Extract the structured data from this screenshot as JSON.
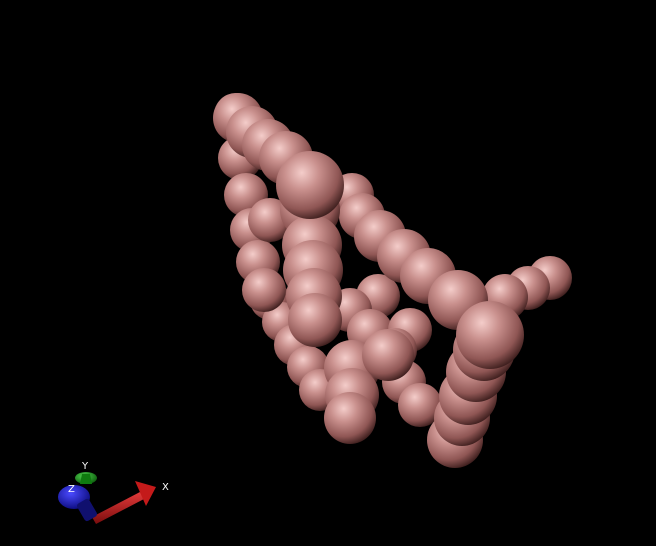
{
  "scene": {
    "background_color": "#000000",
    "sphere_color": "#c07f7c",
    "sphere_highlight_color": "#f2c7c3",
    "sphere_shadow_color": "#3d1d1c"
  },
  "axes": {
    "x_label": "X",
    "y_label": "Y",
    "z_label": "Z",
    "x_color": "#c41a1a",
    "y_color": "#1aa51a",
    "z_color": "#1a1ad2"
  }
}
